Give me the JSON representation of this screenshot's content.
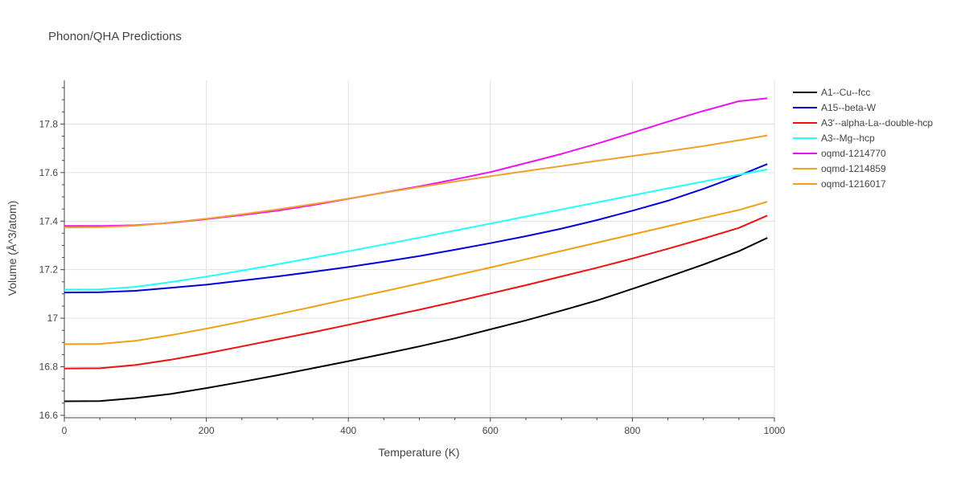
{
  "chart_data": {
    "type": "line",
    "title": "Phonon/QHA Predictions",
    "xlabel": "Temperature (K)",
    "ylabel": "Volume (Å^3/atom)",
    "xlim": [
      0,
      1000
    ],
    "ylim": [
      16.59,
      17.98
    ],
    "x_ticks": [
      0,
      200,
      400,
      600,
      800,
      1000
    ],
    "y_ticks": [
      16.6,
      16.8,
      17,
      17.2,
      17.4,
      17.6,
      17.8
    ],
    "x_tick_labels": [
      "0",
      "200",
      "400",
      "600",
      "800",
      "1000"
    ],
    "y_tick_labels": [
      "16.6",
      "16.8",
      "17",
      "17.2",
      "17.4",
      "17.6",
      "17.8"
    ],
    "grid": true,
    "legend_position": "right",
    "x": [
      0,
      50,
      100,
      150,
      200,
      250,
      300,
      350,
      400,
      450,
      500,
      550,
      600,
      650,
      700,
      750,
      800,
      850,
      900,
      950,
      990
    ],
    "series": [
      {
        "name": "A1--Cu--fcc",
        "color": "#000000",
        "values": [
          16.658,
          16.659,
          16.671,
          16.688,
          16.712,
          16.738,
          16.765,
          16.794,
          16.823,
          16.853,
          16.884,
          16.917,
          16.954,
          16.991,
          17.031,
          17.073,
          17.121,
          17.17,
          17.221,
          17.276,
          17.331
        ]
      },
      {
        "name": "A15--beta-W",
        "color": "#0000dd",
        "values": [
          17.106,
          17.107,
          17.113,
          17.125,
          17.138,
          17.155,
          17.172,
          17.191,
          17.211,
          17.233,
          17.256,
          17.282,
          17.309,
          17.338,
          17.369,
          17.404,
          17.443,
          17.484,
          17.533,
          17.587,
          17.635
        ]
      },
      {
        "name": "A3'--alpha-La--double-hcp",
        "color": "#ee1111",
        "values": [
          16.793,
          16.794,
          16.807,
          16.829,
          16.855,
          16.884,
          16.913,
          16.942,
          16.973,
          17.004,
          17.035,
          17.068,
          17.102,
          17.136,
          17.172,
          17.208,
          17.246,
          17.286,
          17.328,
          17.372,
          17.423
        ]
      },
      {
        "name": "A3--Mg--hcp",
        "color": "#22ffff",
        "values": [
          17.118,
          17.119,
          17.129,
          17.149,
          17.171,
          17.196,
          17.222,
          17.249,
          17.276,
          17.304,
          17.332,
          17.361,
          17.39,
          17.419,
          17.448,
          17.477,
          17.506,
          17.535,
          17.563,
          17.591,
          17.613
        ]
      },
      {
        "name": "oqmd-1214770",
        "color": "#ee11ee",
        "values": [
          17.38,
          17.38,
          17.383,
          17.393,
          17.408,
          17.425,
          17.443,
          17.466,
          17.492,
          17.518,
          17.543,
          17.572,
          17.602,
          17.639,
          17.677,
          17.719,
          17.764,
          17.81,
          17.854,
          17.894,
          17.906
        ]
      },
      {
        "name": "oqmd-1214859",
        "color": "#f0a030",
        "values": [
          17.374,
          17.375,
          17.381,
          17.394,
          17.41,
          17.428,
          17.448,
          17.47,
          17.493,
          17.517,
          17.54,
          17.563,
          17.585,
          17.606,
          17.627,
          17.648,
          17.668,
          17.688,
          17.709,
          17.733,
          17.753
        ]
      },
      {
        "name": "oqmd-1216017",
        "color": "#f0a010",
        "values": [
          16.893,
          16.894,
          16.907,
          16.93,
          16.957,
          16.986,
          17.016,
          17.047,
          17.079,
          17.111,
          17.143,
          17.176,
          17.209,
          17.243,
          17.277,
          17.311,
          17.345,
          17.379,
          17.413,
          17.446,
          17.48
        ]
      }
    ]
  }
}
